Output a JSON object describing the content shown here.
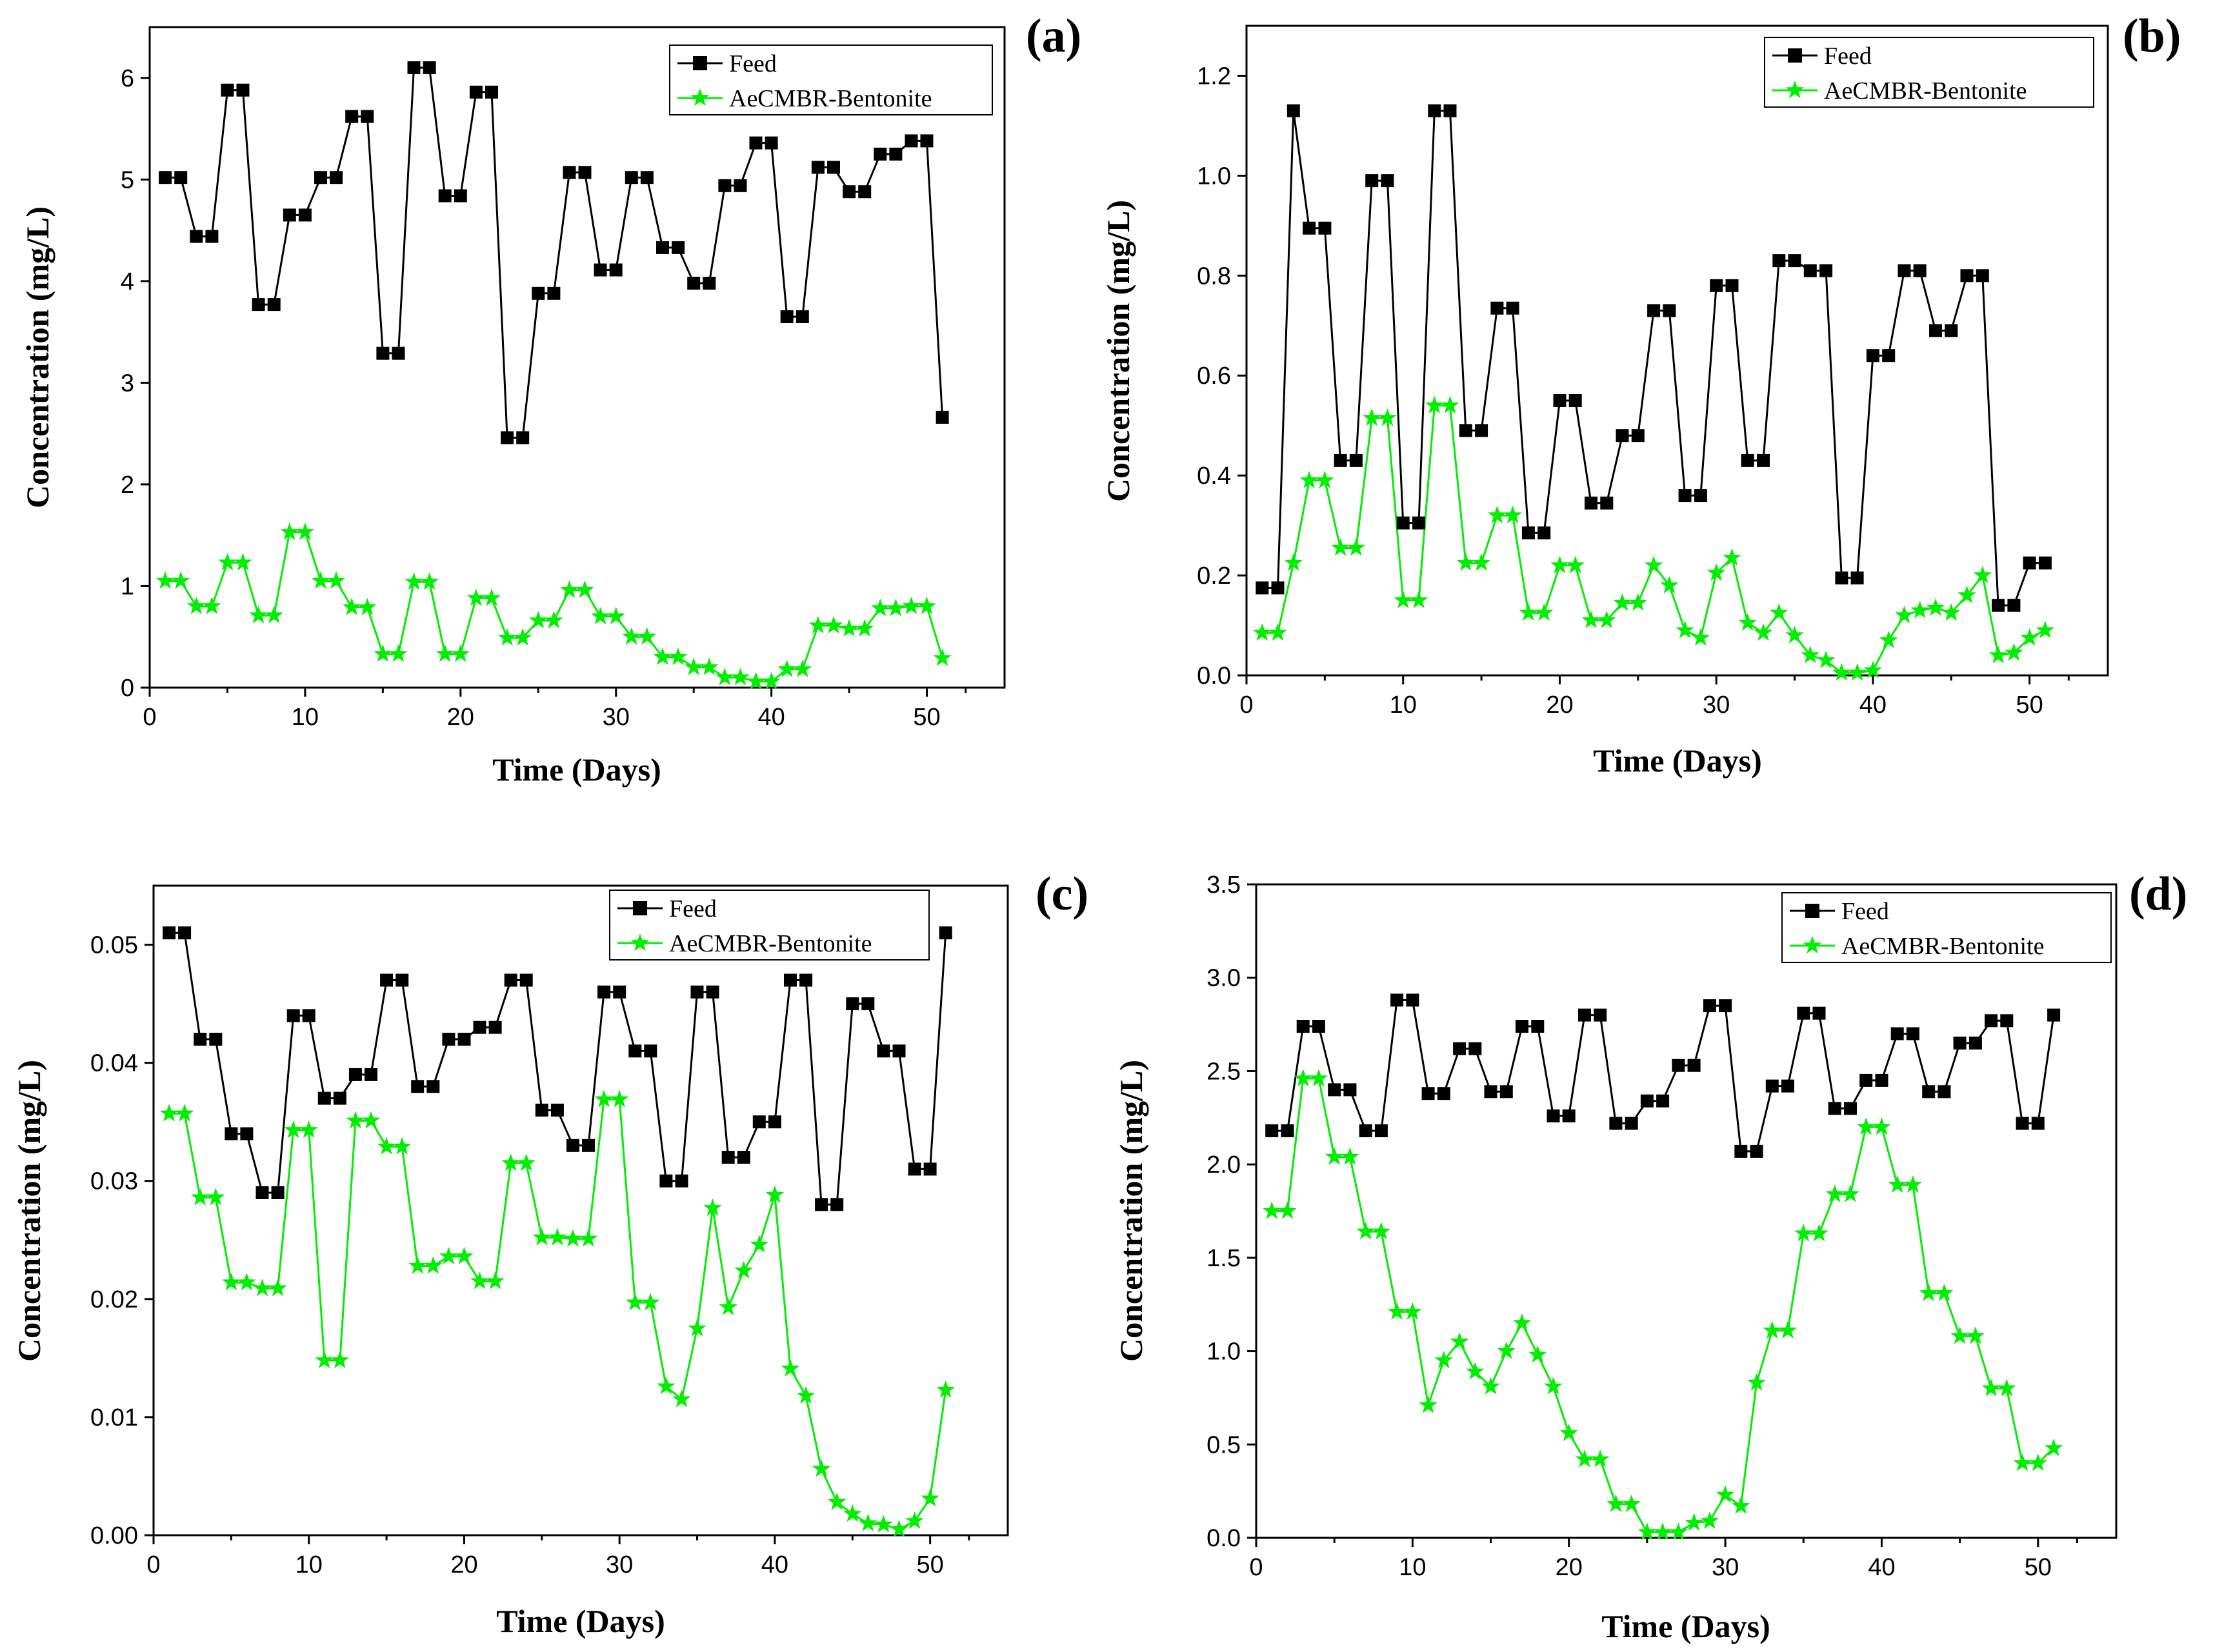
{
  "figure": {
    "background": "#ffffff"
  },
  "colors": {
    "feed": "#000000",
    "treated": "#00ee00"
  },
  "chart_data": [
    {
      "type": "line",
      "panel_label": "(a)",
      "xlabel": "Time (Days)",
      "ylabel": "Concentration (mg/L)",
      "xlim": [
        0,
        55
      ],
      "ylim": [
        0,
        6.5
      ],
      "xticks": [
        0,
        10,
        20,
        30,
        40,
        50
      ],
      "yticks": [
        0,
        1,
        2,
        3,
        4,
        5,
        6
      ],
      "y_tick_labels": [
        "0",
        "1",
        "2",
        "3",
        "4",
        "5",
        "6"
      ],
      "legend": {
        "position": "top-right",
        "entries": [
          "Feed",
          "AeCMBR-Bentonite"
        ]
      },
      "x": [
        1,
        2,
        3,
        4,
        5,
        6,
        7,
        8,
        9,
        10,
        11,
        12,
        13,
        14,
        15,
        16,
        17,
        18,
        19,
        20,
        21,
        22,
        23,
        24,
        25,
        26,
        27,
        28,
        29,
        30,
        31,
        32,
        33,
        34,
        35,
        36,
        37,
        38,
        39,
        40,
        41,
        42,
        43,
        44,
        45,
        46,
        47,
        48,
        49,
        50,
        51
      ],
      "series": [
        {
          "name": "Feed",
          "marker": "square",
          "values": [
            5.02,
            5.02,
            4.44,
            4.44,
            5.88,
            5.88,
            3.77,
            3.77,
            4.65,
            4.65,
            5.02,
            5.02,
            5.62,
            5.62,
            3.29,
            3.29,
            6.1,
            6.1,
            4.84,
            4.84,
            5.86,
            5.86,
            2.46,
            2.46,
            3.88,
            3.88,
            5.07,
            5.07,
            4.11,
            4.11,
            5.02,
            5.02,
            4.33,
            4.33,
            3.98,
            3.98,
            4.94,
            4.94,
            5.36,
            5.36,
            3.65,
            3.65,
            5.12,
            5.12,
            4.88,
            4.88,
            5.25,
            5.25,
            5.38,
            5.38,
            2.66
          ]
        },
        {
          "name": "AeCMBR-Bentonite",
          "marker": "star",
          "values": [
            1.05,
            1.05,
            0.8,
            0.8,
            1.23,
            1.23,
            0.71,
            0.71,
            1.53,
            1.53,
            1.05,
            1.05,
            0.79,
            0.79,
            0.33,
            0.33,
            1.04,
            1.04,
            0.33,
            0.33,
            0.88,
            0.88,
            0.49,
            0.49,
            0.66,
            0.66,
            0.96,
            0.96,
            0.7,
            0.7,
            0.5,
            0.5,
            0.3,
            0.3,
            0.2,
            0.2,
            0.1,
            0.1,
            0.06,
            0.06,
            0.18,
            0.18,
            0.61,
            0.61,
            0.58,
            0.58,
            0.78,
            0.78,
            0.8,
            0.8,
            0.29
          ]
        }
      ]
    },
    {
      "type": "line",
      "panel_label": "(b)",
      "xlabel": "Time (Days)",
      "ylabel": "Concentration (mg/L)",
      "xlim": [
        0,
        55
      ],
      "ylim": [
        0,
        1.3
      ],
      "xticks": [
        0,
        10,
        20,
        30,
        40,
        50
      ],
      "yticks": [
        0,
        0.2,
        0.4,
        0.6,
        0.8,
        1.0,
        1.2
      ],
      "y_tick_labels": [
        "0.0",
        "0.2",
        "0.4",
        "0.6",
        "0.8",
        "1.0",
        "1.2"
      ],
      "legend": {
        "position": "top-right",
        "entries": [
          "Feed",
          "AeCMBR-Bentonite"
        ]
      },
      "x": [
        1,
        2,
        3,
        4,
        5,
        6,
        7,
        8,
        9,
        10,
        11,
        12,
        13,
        14,
        15,
        16,
        17,
        18,
        19,
        20,
        21,
        22,
        23,
        24,
        25,
        26,
        27,
        28,
        29,
        30,
        31,
        32,
        33,
        34,
        35,
        36,
        37,
        38,
        39,
        40,
        41,
        42,
        43,
        44,
        45,
        46,
        47,
        48,
        49,
        50,
        51
      ],
      "series": [
        {
          "name": "Feed",
          "marker": "square",
          "values": [
            0.175,
            0.175,
            1.13,
            0.895,
            0.895,
            0.43,
            0.43,
            0.99,
            0.99,
            0.305,
            0.305,
            1.13,
            1.13,
            0.49,
            0.49,
            0.735,
            0.735,
            0.285,
            0.285,
            0.55,
            0.55,
            0.345,
            0.345,
            0.48,
            0.48,
            0.73,
            0.73,
            0.36,
            0.36,
            0.78,
            0.78,
            0.43,
            0.43,
            0.83,
            0.83,
            0.81,
            0.81,
            0.195,
            0.195,
            0.64,
            0.64,
            0.81,
            0.81,
            0.69,
            0.69,
            0.8,
            0.8,
            0.14,
            0.14,
            0.225,
            0.225
          ]
        },
        {
          "name": "AeCMBR-Bentonite",
          "marker": "star",
          "values": [
            0.085,
            0.085,
            0.225,
            0.39,
            0.39,
            0.255,
            0.255,
            0.515,
            0.515,
            0.15,
            0.15,
            0.54,
            0.54,
            0.225,
            0.225,
            0.32,
            0.32,
            0.125,
            0.125,
            0.22,
            0.22,
            0.11,
            0.11,
            0.145,
            0.145,
            0.22,
            0.18,
            0.09,
            0.075,
            0.205,
            0.235,
            0.105,
            0.085,
            0.125,
            0.08,
            0.04,
            0.03,
            0.005,
            0.005,
            0.01,
            0.07,
            0.12,
            0.13,
            0.135,
            0.125,
            0.16,
            0.2,
            0.04,
            0.045,
            0.075,
            0.09
          ]
        }
      ]
    },
    {
      "type": "line",
      "panel_label": "(c)",
      "xlabel": "Time (Days)",
      "ylabel": "Concentration (mg/L)",
      "xlim": [
        0,
        55
      ],
      "ylim": [
        0,
        0.055
      ],
      "xticks": [
        0,
        10,
        20,
        30,
        40,
        50
      ],
      "yticks": [
        0,
        0.01,
        0.02,
        0.03,
        0.04,
        0.05
      ],
      "y_tick_labels": [
        "0.00",
        "0.01",
        "0.02",
        "0.03",
        "0.04",
        "0.05"
      ],
      "legend": {
        "position": "top-right",
        "entries": [
          "Feed",
          "AeCMBR-Bentonite"
        ]
      },
      "x": [
        1,
        2,
        3,
        4,
        5,
        6,
        7,
        8,
        9,
        10,
        11,
        12,
        13,
        14,
        15,
        16,
        17,
        18,
        19,
        20,
        21,
        22,
        23,
        24,
        25,
        26,
        27,
        28,
        29,
        30,
        31,
        32,
        33,
        34,
        35,
        36,
        37,
        38,
        39,
        40,
        41,
        42,
        43,
        44,
        45,
        46,
        47,
        48,
        49,
        50,
        51
      ],
      "series": [
        {
          "name": "Feed",
          "marker": "square",
          "values": [
            0.051,
            0.051,
            0.042,
            0.042,
            0.034,
            0.034,
            0.029,
            0.029,
            0.044,
            0.044,
            0.037,
            0.037,
            0.039,
            0.039,
            0.047,
            0.047,
            0.038,
            0.038,
            0.042,
            0.042,
            0.043,
            0.043,
            0.047,
            0.047,
            0.036,
            0.036,
            0.033,
            0.033,
            0.046,
            0.046,
            0.041,
            0.041,
            0.03,
            0.03,
            0.046,
            0.046,
            0.032,
            0.032,
            0.035,
            0.035,
            0.047,
            0.047,
            0.028,
            0.028,
            0.045,
            0.045,
            0.041,
            0.041,
            0.031,
            0.031,
            0.051
          ]
        },
        {
          "name": "AeCMBR-Bentonite",
          "marker": "star",
          "values": [
            0.0357,
            0.0357,
            0.0286,
            0.0286,
            0.0214,
            0.0214,
            0.0209,
            0.0209,
            0.0343,
            0.0343,
            0.0148,
            0.0148,
            0.0351,
            0.0351,
            0.0329,
            0.0329,
            0.0228,
            0.0228,
            0.0236,
            0.0236,
            0.0215,
            0.0215,
            0.0315,
            0.0315,
            0.0252,
            0.0252,
            0.0251,
            0.0251,
            0.0369,
            0.0369,
            0.0197,
            0.0197,
            0.0126,
            0.0115,
            0.0175,
            0.0277,
            0.0193,
            0.0224,
            0.0246,
            0.0288,
            0.0141,
            0.0118,
            0.0056,
            0.0028,
            0.0018,
            0.001,
            0.0009,
            0.0005,
            0.0012,
            0.0031,
            0.0123
          ]
        }
      ]
    },
    {
      "type": "line",
      "panel_label": "(d)",
      "xlabel": "Time (Days)",
      "ylabel": "Concentration (mg/L)",
      "xlim": [
        0,
        55
      ],
      "ylim": [
        0,
        3.5
      ],
      "xticks": [
        0,
        10,
        20,
        30,
        40,
        50
      ],
      "yticks": [
        0,
        0.5,
        1.0,
        1.5,
        2.0,
        2.5,
        3.0,
        3.5
      ],
      "y_tick_labels": [
        "0.0",
        "0.5",
        "1.0",
        "1.5",
        "2.0",
        "2.5",
        "3.0",
        "3.5"
      ],
      "legend": {
        "position": "top-right",
        "entries": [
          "Feed",
          "AeCMBR-Bentonite"
        ]
      },
      "x": [
        1,
        2,
        3,
        4,
        5,
        6,
        7,
        8,
        9,
        10,
        11,
        12,
        13,
        14,
        15,
        16,
        17,
        18,
        19,
        20,
        21,
        22,
        23,
        24,
        25,
        26,
        27,
        28,
        29,
        30,
        31,
        32,
        33,
        34,
        35,
        36,
        37,
        38,
        39,
        40,
        41,
        42,
        43,
        44,
        45,
        46,
        47,
        48,
        49,
        50,
        51
      ],
      "series": [
        {
          "name": "Feed",
          "marker": "square",
          "values": [
            2.18,
            2.18,
            2.74,
            2.74,
            2.4,
            2.4,
            2.18,
            2.18,
            2.88,
            2.88,
            2.38,
            2.38,
            2.62,
            2.62,
            2.39,
            2.39,
            2.74,
            2.74,
            2.26,
            2.26,
            2.8,
            2.8,
            2.22,
            2.22,
            2.34,
            2.34,
            2.53,
            2.53,
            2.85,
            2.85,
            2.07,
            2.07,
            2.42,
            2.42,
            2.81,
            2.81,
            2.3,
            2.3,
            2.45,
            2.45,
            2.7,
            2.7,
            2.39,
            2.39,
            2.65,
            2.65,
            2.77,
            2.77,
            2.22,
            2.22,
            2.8
          ]
        },
        {
          "name": "AeCMBR-Bentonite",
          "marker": "star",
          "values": [
            1.75,
            1.75,
            2.46,
            2.46,
            2.04,
            2.04,
            1.64,
            1.64,
            1.21,
            1.21,
            0.71,
            0.95,
            1.05,
            0.89,
            0.81,
            1.0,
            1.15,
            0.98,
            0.81,
            0.56,
            0.42,
            0.42,
            0.18,
            0.18,
            0.03,
            0.03,
            0.03,
            0.08,
            0.09,
            0.23,
            0.17,
            0.83,
            1.11,
            1.11,
            1.63,
            1.63,
            1.84,
            1.84,
            2.2,
            2.2,
            1.89,
            1.89,
            1.31,
            1.31,
            1.08,
            1.08,
            0.8,
            0.8,
            0.4,
            0.4,
            0.48
          ]
        }
      ]
    }
  ]
}
